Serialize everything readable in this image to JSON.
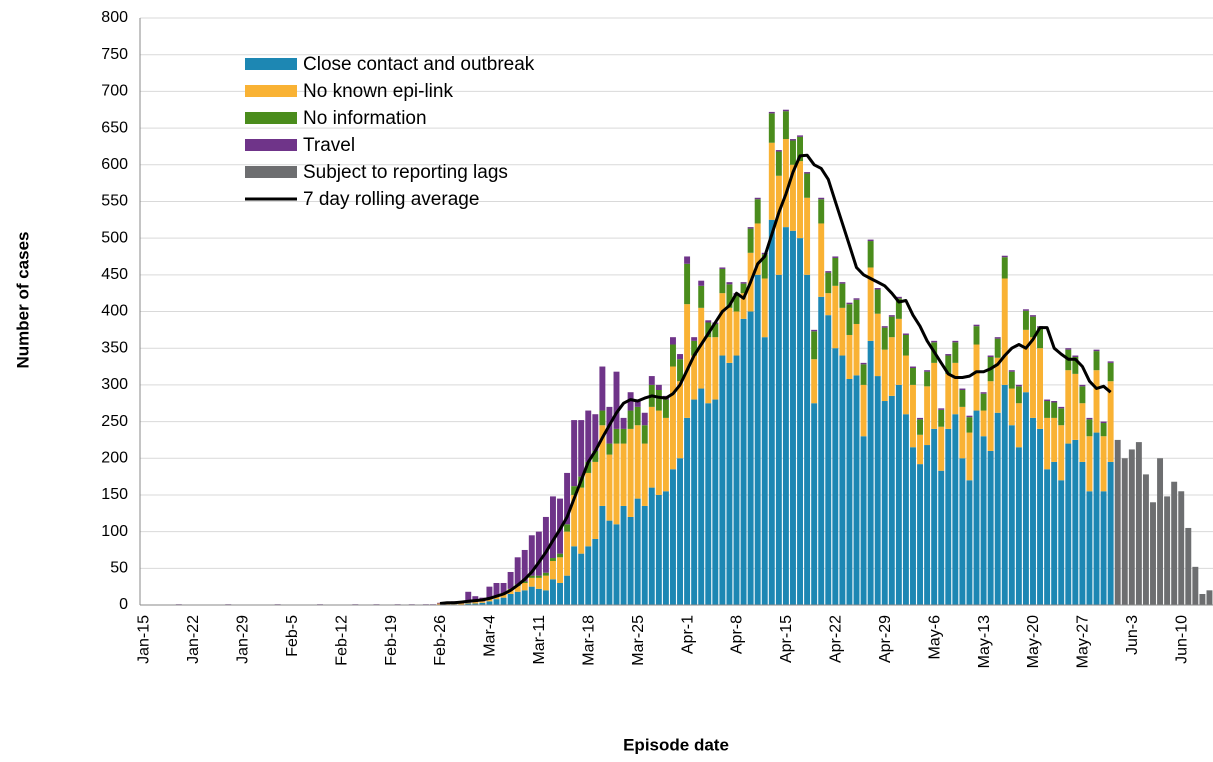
{
  "chart_data": {
    "type": "bar",
    "stacked": true,
    "x_label": "Episode date",
    "y_label": "Number of cases",
    "ylim": [
      0,
      800
    ],
    "yticks": [
      0,
      50,
      100,
      150,
      200,
      250,
      300,
      350,
      400,
      450,
      500,
      550,
      600,
      650,
      700,
      750,
      800
    ],
    "grid": true,
    "legend": "upper left",
    "categories": [
      "Jan-15",
      null,
      null,
      null,
      null,
      null,
      null,
      "Jan-22",
      null,
      null,
      null,
      null,
      null,
      null,
      "Jan-29",
      null,
      null,
      null,
      null,
      null,
      null,
      "Feb-5",
      null,
      null,
      null,
      null,
      null,
      null,
      "Feb-12",
      null,
      null,
      null,
      null,
      null,
      null,
      "Feb-19",
      null,
      null,
      null,
      null,
      null,
      null,
      "Feb-26",
      null,
      null,
      null,
      null,
      null,
      null,
      "Mar-4",
      null,
      null,
      null,
      null,
      null,
      null,
      "Mar-11",
      null,
      null,
      null,
      null,
      null,
      null,
      "Mar-18",
      null,
      null,
      null,
      null,
      null,
      null,
      "Mar-25",
      null,
      null,
      null,
      null,
      null,
      null,
      "Apr-1",
      null,
      null,
      null,
      null,
      null,
      null,
      "Apr-8",
      null,
      null,
      null,
      null,
      null,
      null,
      "Apr-15",
      null,
      null,
      null,
      null,
      null,
      null,
      "Apr-22",
      null,
      null,
      null,
      null,
      null,
      null,
      "Apr-29",
      null,
      null,
      null,
      null,
      null,
      null,
      "May-6",
      null,
      null,
      null,
      null,
      null,
      null,
      "May-13",
      null,
      null,
      null,
      null,
      null,
      null,
      "May-20",
      null,
      null,
      null,
      null,
      null,
      null,
      "May-27",
      null,
      null,
      null,
      null,
      null,
      null,
      "Jun-3",
      null,
      null,
      null,
      null,
      null,
      null,
      "Jun-10",
      null,
      null,
      null,
      null
    ],
    "series": [
      {
        "name": "Close contact and outbreak",
        "color": "#1d87b3",
        "values": [
          0,
          0,
          0,
          0,
          0,
          0,
          0,
          0,
          0,
          0,
          0,
          0,
          0,
          0,
          0,
          0,
          0,
          0,
          0,
          0,
          0,
          0,
          0,
          0,
          0,
          0,
          0,
          0,
          0,
          0,
          0,
          0,
          0,
          0,
          0,
          0,
          0,
          0,
          0,
          0,
          0,
          0,
          0,
          0,
          1,
          0,
          2,
          2,
          3,
          5,
          8,
          10,
          15,
          18,
          20,
          25,
          22,
          20,
          35,
          30,
          40,
          80,
          70,
          80,
          90,
          135,
          115,
          110,
          135,
          120,
          145,
          135,
          160,
          150,
          155,
          185,
          200,
          255,
          280,
          295,
          275,
          280,
          340,
          330,
          340,
          390,
          400,
          450,
          365,
          525,
          450,
          515,
          510,
          500,
          450,
          275,
          420,
          395,
          350,
          340,
          308,
          313,
          230,
          360,
          312,
          278,
          285,
          300,
          260,
          215,
          192,
          218,
          240,
          183,
          240,
          260,
          200,
          170,
          265,
          230,
          210,
          262,
          300,
          245,
          215,
          290,
          255,
          240,
          185,
          195,
          170,
          220,
          225,
          195,
          155,
          235,
          155,
          195,
          null,
          null,
          null,
          null,
          null,
          null,
          null,
          null,
          null,
          null,
          null,
          null,
          null,
          null
        ]
      },
      {
        "name": "No known epi-link",
        "color": "#f9b234",
        "values": [
          0,
          0,
          0,
          0,
          0,
          0,
          0,
          0,
          0,
          0,
          0,
          0,
          0,
          0,
          0,
          0,
          0,
          0,
          0,
          0,
          0,
          0,
          0,
          0,
          0,
          0,
          0,
          0,
          0,
          0,
          0,
          0,
          0,
          0,
          0,
          0,
          0,
          0,
          0,
          0,
          0,
          0,
          2,
          2,
          2,
          2,
          1,
          2,
          2,
          3,
          4,
          5,
          6,
          8,
          10,
          12,
          15,
          20,
          25,
          35,
          60,
          70,
          90,
          100,
          105,
          110,
          90,
          110,
          85,
          120,
          100,
          85,
          110,
          115,
          100,
          140,
          105,
          155,
          60,
          110,
          90,
          85,
          85,
          75,
          60,
          35,
          80,
          70,
          80,
          105,
          135,
          120,
          90,
          105,
          105,
          60,
          100,
          30,
          85,
          65,
          60,
          70,
          70,
          100,
          85,
          70,
          80,
          90,
          80,
          85,
          40,
          80,
          90,
          60,
          75,
          70,
          70,
          65,
          90,
          35,
          95,
          75,
          145,
          50,
          60,
          85,
          110,
          110,
          70,
          60,
          75,
          100,
          90,
          80,
          75,
          85,
          75,
          110,
          null,
          null,
          null,
          null,
          null,
          null,
          null,
          null,
          null,
          null,
          null,
          null,
          null,
          null
        ]
      },
      {
        "name": "No information",
        "color": "#4a8c1c",
        "values": [
          0,
          0,
          0,
          0,
          0,
          0,
          0,
          0,
          0,
          0,
          0,
          0,
          0,
          0,
          0,
          0,
          0,
          0,
          0,
          0,
          0,
          0,
          0,
          0,
          0,
          0,
          0,
          0,
          0,
          0,
          0,
          0,
          0,
          0,
          0,
          0,
          0,
          0,
          0,
          0,
          0,
          0,
          0,
          0,
          0,
          0,
          0,
          0,
          0,
          0,
          1,
          1,
          1,
          2,
          2,
          3,
          3,
          4,
          4,
          5,
          10,
          12,
          15,
          15,
          15,
          20,
          15,
          20,
          20,
          25,
          25,
          25,
          30,
          28,
          25,
          30,
          30,
          55,
          20,
          30,
          20,
          18,
          33,
          32,
          22,
          13,
          33,
          33,
          33,
          40,
          33,
          38,
          33,
          33,
          33,
          38,
          33,
          28,
          38,
          33,
          42,
          33,
          28,
          36,
          33,
          30,
          28,
          28,
          28,
          23,
          21,
          20,
          28,
          23,
          25,
          28,
          23,
          21,
          25,
          23,
          33,
          26,
          29,
          23,
          23,
          26,
          28,
          28,
          23,
          21,
          23,
          28,
          23,
          23,
          23,
          26,
          18,
          25,
          null,
          null,
          null,
          null,
          null,
          null,
          null,
          null,
          null,
          null,
          null,
          null,
          null,
          null
        ]
      },
      {
        "name": "Travel",
        "color": "#6f3489",
        "values": [
          0,
          0,
          0,
          0,
          0,
          1,
          0,
          0,
          0,
          0,
          0,
          0,
          1,
          0,
          0,
          0,
          0,
          0,
          0,
          1,
          0,
          0,
          0,
          0,
          0,
          1,
          0,
          0,
          0,
          0,
          1,
          0,
          0,
          1,
          0,
          0,
          1,
          0,
          1,
          0,
          1,
          1,
          1,
          2,
          2,
          2,
          15,
          8,
          5,
          17,
          17,
          14,
          23,
          37,
          43,
          55,
          60,
          76,
          84,
          75,
          70,
          90,
          77,
          70,
          50,
          60,
          50,
          78,
          15,
          25,
          10,
          17,
          12,
          7,
          5,
          10,
          7,
          10,
          5,
          7,
          3,
          2,
          2,
          3,
          3,
          2,
          2,
          2,
          2,
          2,
          2,
          2,
          2,
          2,
          2,
          2,
          2,
          2,
          2,
          2,
          2,
          2,
          2,
          2,
          2,
          2,
          2,
          2,
          2,
          2,
          2,
          2,
          2,
          2,
          2,
          2,
          2,
          2,
          2,
          2,
          2,
          2,
          2,
          2,
          2,
          2,
          2,
          2,
          2,
          2,
          2,
          2,
          2,
          2,
          2,
          2,
          2,
          2,
          null,
          null,
          null,
          null,
          null,
          null,
          null,
          null,
          null,
          null,
          null,
          null,
          null,
          null
        ]
      },
      {
        "name": "Subject to reporting lags",
        "color": "#6d6e70",
        "values": [
          null,
          null,
          null,
          null,
          null,
          null,
          null,
          null,
          null,
          null,
          null,
          null,
          null,
          null,
          null,
          null,
          null,
          null,
          null,
          null,
          null,
          null,
          null,
          null,
          null,
          null,
          null,
          null,
          null,
          null,
          null,
          null,
          null,
          null,
          null,
          null,
          null,
          null,
          null,
          null,
          null,
          null,
          null,
          null,
          null,
          null,
          null,
          null,
          null,
          null,
          null,
          null,
          null,
          null,
          null,
          null,
          null,
          null,
          null,
          null,
          null,
          null,
          null,
          null,
          null,
          null,
          null,
          null,
          null,
          null,
          null,
          null,
          null,
          null,
          null,
          null,
          null,
          null,
          null,
          null,
          null,
          null,
          null,
          null,
          null,
          null,
          null,
          null,
          null,
          null,
          null,
          null,
          null,
          null,
          null,
          null,
          null,
          null,
          null,
          null,
          null,
          null,
          null,
          null,
          null,
          null,
          null,
          null,
          null,
          null,
          null,
          null,
          null,
          null,
          null,
          null,
          null,
          null,
          null,
          null,
          null,
          null,
          null,
          null,
          null,
          null,
          null,
          null,
          null,
          null,
          null,
          null,
          null,
          null,
          null,
          null,
          null,
          null,
          225,
          200,
          212,
          222,
          178,
          140,
          200,
          148,
          168,
          155,
          105,
          52,
          15,
          20
        ]
      },
      {
        "name": "7 day rolling average",
        "type": "line",
        "color": "#000000",
        "values": [
          null,
          null,
          null,
          null,
          null,
          null,
          null,
          null,
          null,
          null,
          null,
          null,
          null,
          null,
          null,
          null,
          null,
          null,
          null,
          null,
          null,
          null,
          null,
          null,
          null,
          null,
          null,
          null,
          null,
          null,
          null,
          null,
          null,
          null,
          null,
          null,
          null,
          null,
          null,
          null,
          null,
          null,
          2,
          3,
          3,
          4,
          5,
          6,
          7,
          9,
          12,
          15,
          20,
          27,
          35,
          45,
          58,
          72,
          88,
          103,
          120,
          145,
          170,
          195,
          210,
          228,
          245,
          262,
          275,
          280,
          278,
          282,
          285,
          283,
          282,
          288,
          300,
          320,
          340,
          355,
          370,
          385,
          400,
          408,
          425,
          418,
          440,
          465,
          475,
          505,
          535,
          560,
          590,
          612,
          613,
          600,
          595,
          580,
          550,
          520,
          490,
          460,
          450,
          445,
          440,
          435,
          425,
          413,
          415,
          395,
          380,
          360,
          345,
          330,
          315,
          310,
          310,
          312,
          318,
          318,
          322,
          328,
          340,
          350,
          355,
          350,
          362,
          378,
          378,
          350,
          342,
          335,
          335,
          325,
          305,
          295,
          298,
          290,
          null,
          null,
          null,
          null,
          null,
          null,
          null,
          null,
          null,
          null,
          null,
          null,
          null,
          null
        ]
      }
    ]
  }
}
